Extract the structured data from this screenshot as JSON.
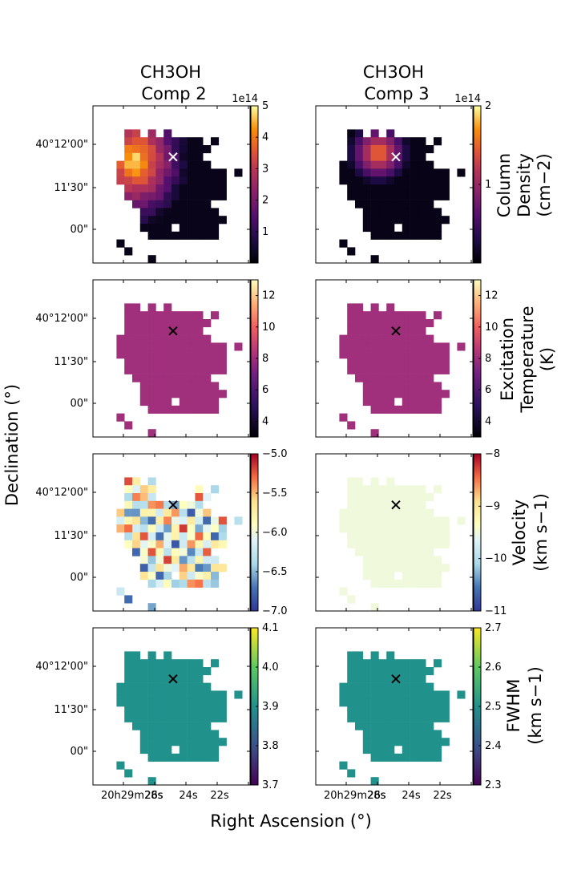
{
  "figure": {
    "xlabel": "Right Ascension (°)",
    "ylabel": "Declination (°)"
  },
  "columns": [
    {
      "title_line1": "CH3OH",
      "title_line2": "Comp 2"
    },
    {
      "title_line1": "CH3OH",
      "title_line2": "Comp 3"
    }
  ],
  "rows": [
    {
      "label_lines": [
        "Column",
        "Density",
        "(cm−2)"
      ]
    },
    {
      "label_lines": [
        "Excitation",
        "Temperature",
        "(K)"
      ]
    },
    {
      "label_lines": [
        "Velocity",
        "(km s−1)"
      ]
    },
    {
      "label_lines": [
        "FWHM",
        "(km s−1)"
      ]
    }
  ],
  "axes": {
    "dec_ticks": [
      "40°12'00\"",
      "11'30\"",
      "00\""
    ],
    "ra_ticks": [
      "20h29m28s",
      "26s",
      "24s",
      "22s"
    ]
  },
  "chart_data": [
    {
      "type": "heatmap",
      "panel": "col-density-comp2",
      "colormap": "inferno",
      "cbar_ticks": [
        "1",
        "2",
        "3",
        "4",
        "5"
      ],
      "cbar_range": [
        0,
        5
      ],
      "cbar_offset": "1e14",
      "marker": "x",
      "marker_color": "#ffffff"
    },
    {
      "type": "heatmap",
      "panel": "col-density-comp3",
      "colormap": "inferno",
      "cbar_ticks": [
        "1",
        "2"
      ],
      "cbar_range": [
        0,
        2
      ],
      "cbar_offset": "1e14",
      "marker": "x",
      "marker_color": "#ffffff"
    },
    {
      "type": "heatmap",
      "panel": "tex-comp2",
      "colormap": "magma",
      "cbar_ticks": [
        "4",
        "6",
        "8",
        "10",
        "12"
      ],
      "cbar_range": [
        3,
        13
      ],
      "cbar_offset": "",
      "uniform_value": 8,
      "marker": "x",
      "marker_color": "#000000"
    },
    {
      "type": "heatmap",
      "panel": "tex-comp3",
      "colormap": "magma",
      "cbar_ticks": [
        "4",
        "6",
        "8",
        "10",
        "12"
      ],
      "cbar_range": [
        3,
        13
      ],
      "cbar_offset": "",
      "uniform_value": 8,
      "marker": "x",
      "marker_color": "#000000"
    },
    {
      "type": "heatmap",
      "panel": "velocity-comp2",
      "colormap": "RdYlBu",
      "cbar_ticks": [
        "−5.0",
        "−5.5",
        "−6.0",
        "−6.5",
        "−7.0"
      ],
      "cbar_range": [
        -7,
        -5
      ],
      "cbar_offset": "",
      "marker": "x",
      "marker_color": "#000000"
    },
    {
      "type": "heatmap",
      "panel": "velocity-comp3",
      "colormap": "RdYlBu",
      "cbar_ticks": [
        "−8",
        "−9",
        "−10",
        "−11"
      ],
      "cbar_range": [
        -11,
        -8
      ],
      "cbar_offset": "",
      "uniform_value": -9.5,
      "marker": "x",
      "marker_color": "#000000"
    },
    {
      "type": "heatmap",
      "panel": "fwhm-comp2",
      "colormap": "viridis",
      "cbar_ticks": [
        "3.7",
        "3.8",
        "3.9",
        "4.0",
        "4.1"
      ],
      "cbar_range": [
        3.7,
        4.1
      ],
      "cbar_offset": "",
      "uniform_value": 3.9,
      "marker": "x",
      "marker_color": "#000000"
    },
    {
      "type": "heatmap",
      "panel": "fwhm-comp3",
      "colormap": "viridis",
      "cbar_ticks": [
        "2.3",
        "2.4",
        "2.5",
        "2.6",
        "2.7"
      ],
      "cbar_range": [
        2.3,
        2.7
      ],
      "cbar_offset": "",
      "uniform_value": 2.5,
      "marker": "x",
      "marker_color": "#000000"
    }
  ]
}
